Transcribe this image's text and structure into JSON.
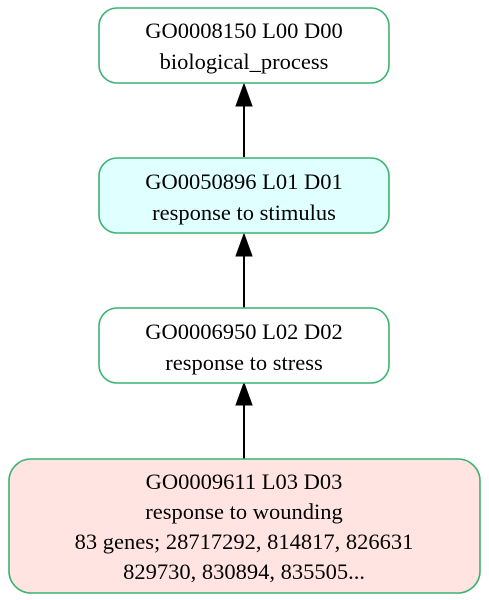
{
  "nodes": [
    {
      "id": "go0008150",
      "fill": "#ffffff",
      "lines": [
        "GO0008150 L00 D00",
        "biological_process"
      ]
    },
    {
      "id": "go0050896",
      "fill": "#e0ffff",
      "lines": [
        "GO0050896 L01 D01",
        "response to stimulus"
      ]
    },
    {
      "id": "go0006950",
      "fill": "#ffffff",
      "lines": [
        "GO0006950 L02 D02",
        "response to stress"
      ]
    },
    {
      "id": "go0009611",
      "fill": "#ffe4e1",
      "lines": [
        "GO0009611 L03 D03",
        "response to wounding",
        "83 genes; 28717292, 814817, 826631",
        "829730, 830894, 835505..."
      ]
    }
  ],
  "edges": [
    {
      "from": "go0050896",
      "to": "go0008150"
    },
    {
      "from": "go0006950",
      "to": "go0050896"
    },
    {
      "from": "go0009611",
      "to": "go0006950"
    }
  ],
  "colors": {
    "node_border": "#3cb371",
    "edge": "#000000"
  }
}
